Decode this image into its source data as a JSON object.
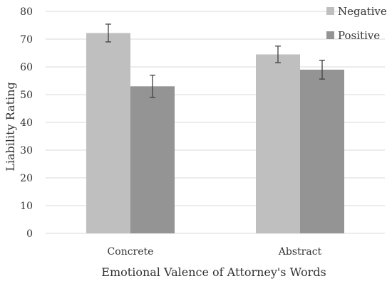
{
  "chart_data": {
    "type": "bar",
    "title": "",
    "xlabel": "Emotional Valence of Attorney's Words",
    "ylabel": "Liability Rating",
    "categories": [
      "Concrete",
      "Abstract"
    ],
    "series": [
      {
        "name": "Negative",
        "values": [
          72.2,
          64.5
        ],
        "errors": [
          3.2,
          3.0
        ],
        "color": "#bfbfbf"
      },
      {
        "name": "Positive",
        "values": [
          53.0,
          59.0
        ],
        "errors": [
          4.0,
          3.4
        ],
        "color": "#949494"
      }
    ],
    "ylim": [
      0,
      80
    ],
    "yticks": [
      0,
      10,
      20,
      30,
      40,
      50,
      60,
      70,
      80
    ],
    "grid": true,
    "legend_position": "top-right",
    "colors": {
      "grid": "#d9d9d9",
      "error_bar": "#404040",
      "text": "#333333"
    }
  }
}
